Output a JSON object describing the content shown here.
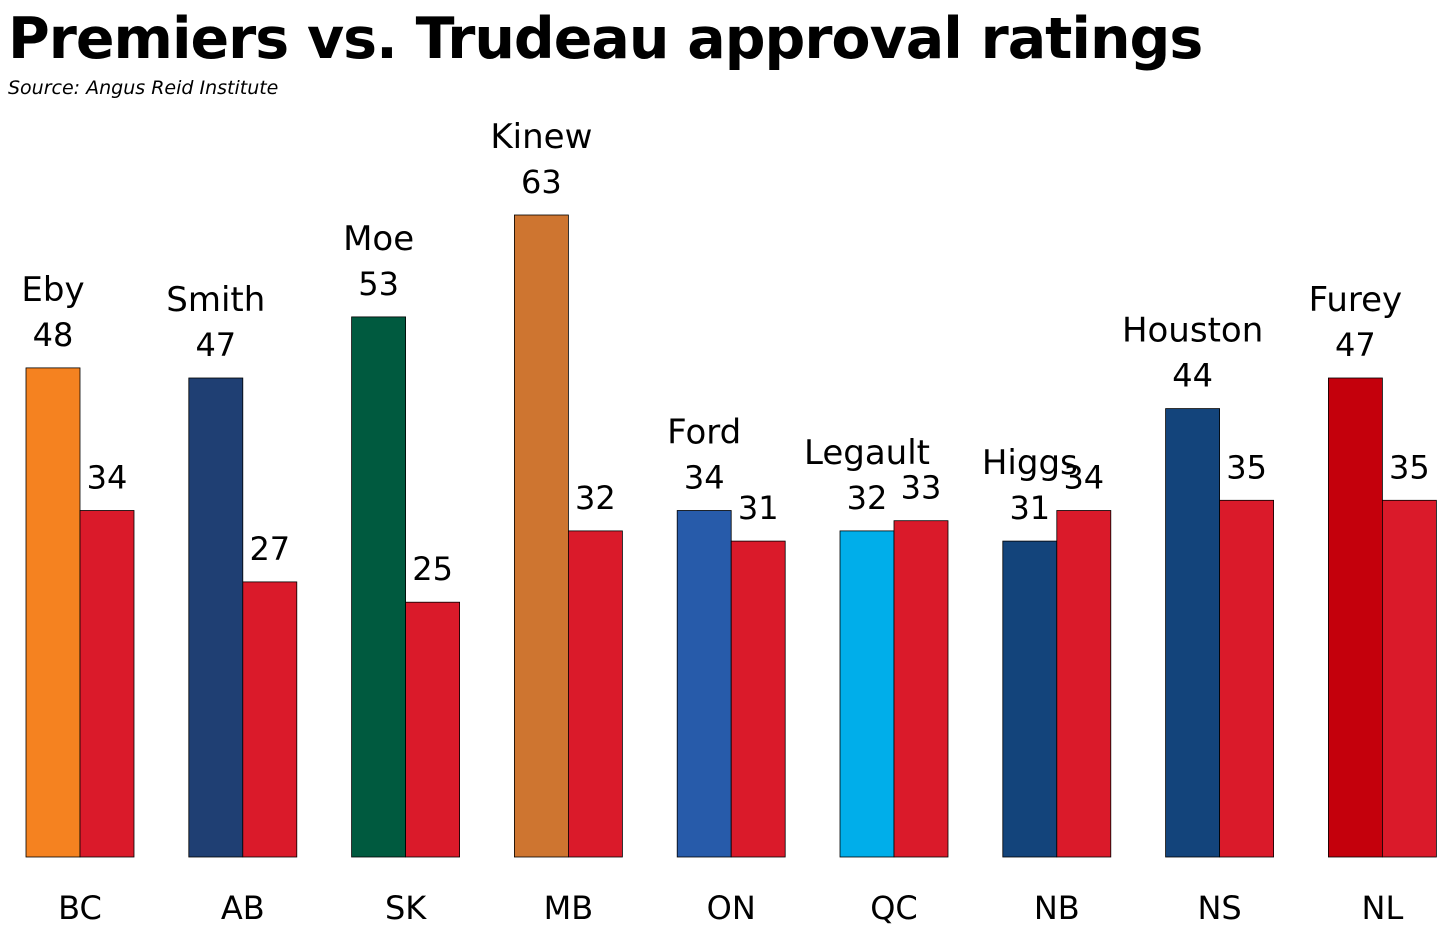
{
  "chart_data": {
    "type": "bar",
    "title": "Premiers vs. Trudeau approval ratings",
    "subtitle": "Source: Angus Reid Institute",
    "xlabel": "",
    "ylabel": "",
    "ylim": [
      0,
      63
    ],
    "grid": false,
    "legend": "none",
    "categories": [
      "BC",
      "AB",
      "SK",
      "MB",
      "ON",
      "QC",
      "NB",
      "NS",
      "NL"
    ],
    "series": [
      {
        "values": [
          48,
          47,
          53,
          63,
          34,
          32,
          31,
          44,
          47
        ],
        "point_labels": [
          "Eby",
          "Smith",
          "Moe",
          "Kinew",
          "Ford",
          "Legault",
          "Higgs",
          "Houston",
          "Furey"
        ],
        "colors": [
          "#F58220",
          "#1F3F73",
          "#005A3F",
          "#CE7530",
          "#275BAA",
          "#00AEEA",
          "#13447B",
          "#13447B",
          "#C4000C"
        ]
      },
      {
        "values": [
          34,
          27,
          25,
          32,
          31,
          33,
          34,
          35,
          35
        ],
        "color": "#DA1A2A"
      }
    ]
  }
}
